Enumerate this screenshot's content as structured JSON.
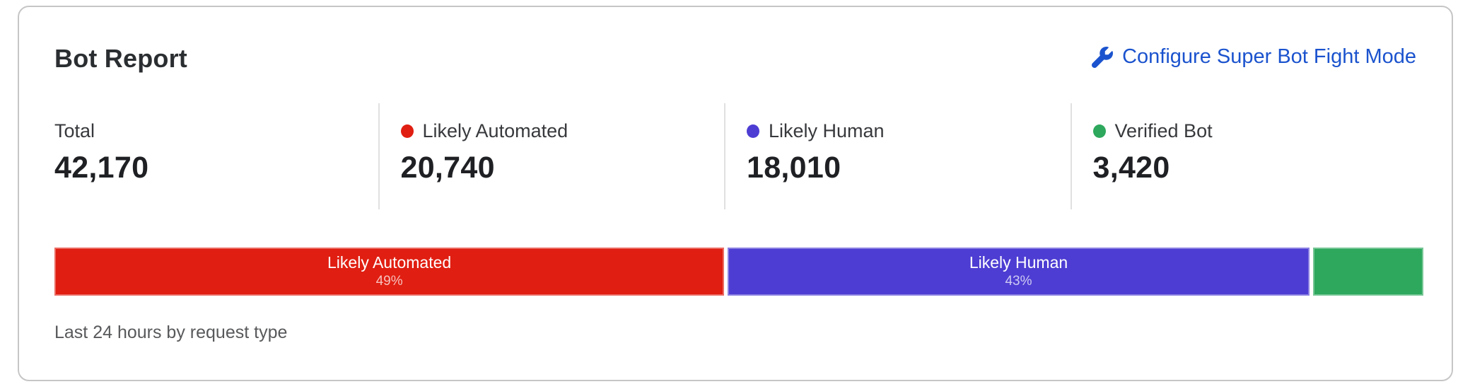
{
  "card": {
    "title": "Bot Report",
    "action": {
      "label": "Configure Super Bot Fight Mode",
      "icon": "wrench-icon",
      "color": "#1b53ce"
    },
    "stats": [
      {
        "label": "Total",
        "value": "42,170",
        "dot_color": ""
      },
      {
        "label": "Likely Automated",
        "value": "20,740",
        "dot_color": "#e01e11"
      },
      {
        "label": "Likely Human",
        "value": "18,010",
        "dot_color": "#4d3dd3"
      },
      {
        "label": "Verified Bot",
        "value": "3,420",
        "dot_color": "#2da85c"
      }
    ],
    "bar": {
      "segments": [
        {
          "label": "Likely Automated",
          "pct_label": "49%",
          "width_pct": 49.18,
          "color": "#e01e11"
        },
        {
          "label": "Likely Human",
          "pct_label": "43%",
          "width_pct": 42.71,
          "color": "#4d3dd3"
        },
        {
          "label": "",
          "pct_label": "",
          "width_pct": 8.11,
          "color": "#2da85c"
        }
      ]
    },
    "footer": "Last 24 hours by request type"
  },
  "chart_data": {
    "type": "bar",
    "variant": "horizontal-stacked",
    "title": "Bot Report",
    "subtitle": "Last 24 hours by request type",
    "categories": [
      "Likely Automated",
      "Likely Human",
      "Verified Bot"
    ],
    "values": [
      20740,
      18010,
      3420
    ],
    "percentages": [
      49,
      43,
      8
    ],
    "total": 42170,
    "colors": [
      "#e01e11",
      "#4d3dd3",
      "#2da85c"
    ],
    "grid": false,
    "legend_position": "top-stats-row"
  }
}
